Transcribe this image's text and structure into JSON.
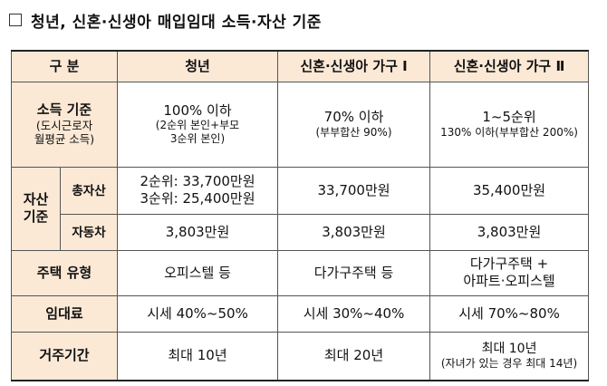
{
  "title": "청년, 신혼·신생아 매입임대 소득·자산 기준",
  "headers": [
    "구  분",
    "청년",
    "신혼·신생아 가구 Ⅰ",
    "신혼·신생아 가구 Ⅱ"
  ],
  "income": {
    "label": "소득 기준",
    "sub1": "(도시근로자",
    "sub2": "월평균 소득)",
    "youth_main": "100% 이하",
    "youth_sub1": "(2순위 본인+부모",
    "youth_sub2": "3순위 본인)",
    "nb1_main": "70% 이하",
    "nb1_sub": "(부부합산 90%)",
    "nb2_main": "1~5순위",
    "nb2_sub": "130% 이하(부부합산 200%)"
  },
  "asset": {
    "label1": "자산",
    "label2": "기준",
    "total_label": "총자산",
    "youth_total1": "2순위: 33,700만원",
    "youth_total2": "3순위: 25,400만원",
    "nb1_total": "33,700만원",
    "nb2_total": "35,400만원",
    "car_label": "자동차",
    "youth_car": "3,803만원",
    "nb1_car": "3,803만원",
    "nb2_car": "3,803만원"
  },
  "housing": {
    "label": "주택 유형",
    "youth": "오피스텔 등",
    "nb1": "다가구주택 등",
    "nb2_1": "다가구주택 +",
    "nb2_2": "아파트·오피스텔"
  },
  "rent": {
    "label": "임대료",
    "youth": "시세 40%~50%",
    "nb1": "시세 30%~40%",
    "nb2": "시세 70%~80%"
  },
  "period": {
    "label": "거주기간",
    "youth": "최대 10년",
    "nb1": "최대 20년",
    "nb2_1": "최대 10년",
    "nb2_2": "(자녀가 있는 경우 최대 14년)"
  }
}
